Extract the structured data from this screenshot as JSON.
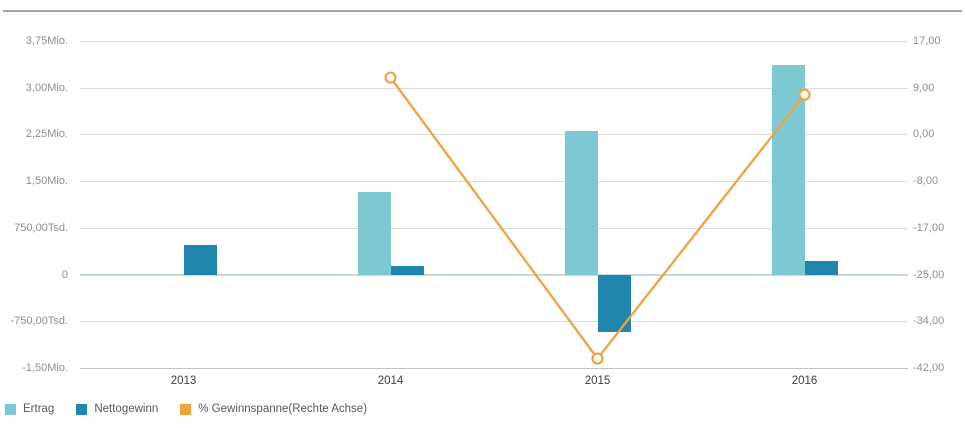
{
  "chart_data": {
    "type": "combo",
    "title": "",
    "categories": [
      "2013",
      "2014",
      "2015",
      "2016"
    ],
    "series": [
      {
        "name": "Ertrag",
        "type": "bar",
        "axis": "left",
        "color": "#7CC9D3",
        "values": [
          0,
          1330000,
          2310000,
          3370000
        ]
      },
      {
        "name": "Nettogewinn",
        "type": "bar",
        "axis": "left",
        "color": "#1F86AE",
        "values": [
          470000,
          130000,
          -930000,
          210000
        ]
      },
      {
        "name": "% Gewinnspanne(Rechte Achse)",
        "type": "line",
        "axis": "right",
        "color": "#F0A23E",
        "marker": "open-circle",
        "values": [
          null,
          10.4,
          -40.3,
          7.3
        ]
      }
    ],
    "left_axis": {
      "min": -1500000,
      "max": 3750000,
      "tick_values": [
        3750000,
        3000000,
        2250000,
        1500000,
        750000,
        0,
        -750000,
        -1500000
      ],
      "labels": [
        "3,75Mio.",
        "3,00Mio.",
        "2,25Mio.",
        "1,50Mio.",
        "750,00Tsd.",
        "0",
        "-750,00Tsd.",
        "-1,50Mio."
      ]
    },
    "right_axis": {
      "min": -42,
      "max": 17,
      "tick_values": [
        17,
        9,
        0,
        -8,
        -17,
        -25,
        -34,
        -42
      ],
      "labels": [
        "17,00",
        "9,00",
        "0,00",
        "-8,00",
        "-17,00",
        "-25,00",
        "-34,00",
        "-42,00"
      ]
    },
    "grid": "horizontal",
    "legend_position": "bottom-left"
  },
  "colors": {
    "gridline": "#DCDCDC",
    "zero_line": "#C6D9E1",
    "axis_baseline": "#C2C2C2",
    "top_border": "#A3A3A3",
    "y_label_text": "#8E8E8E",
    "x_label_text": "#3F3F3F",
    "legend_text": "#595959"
  }
}
